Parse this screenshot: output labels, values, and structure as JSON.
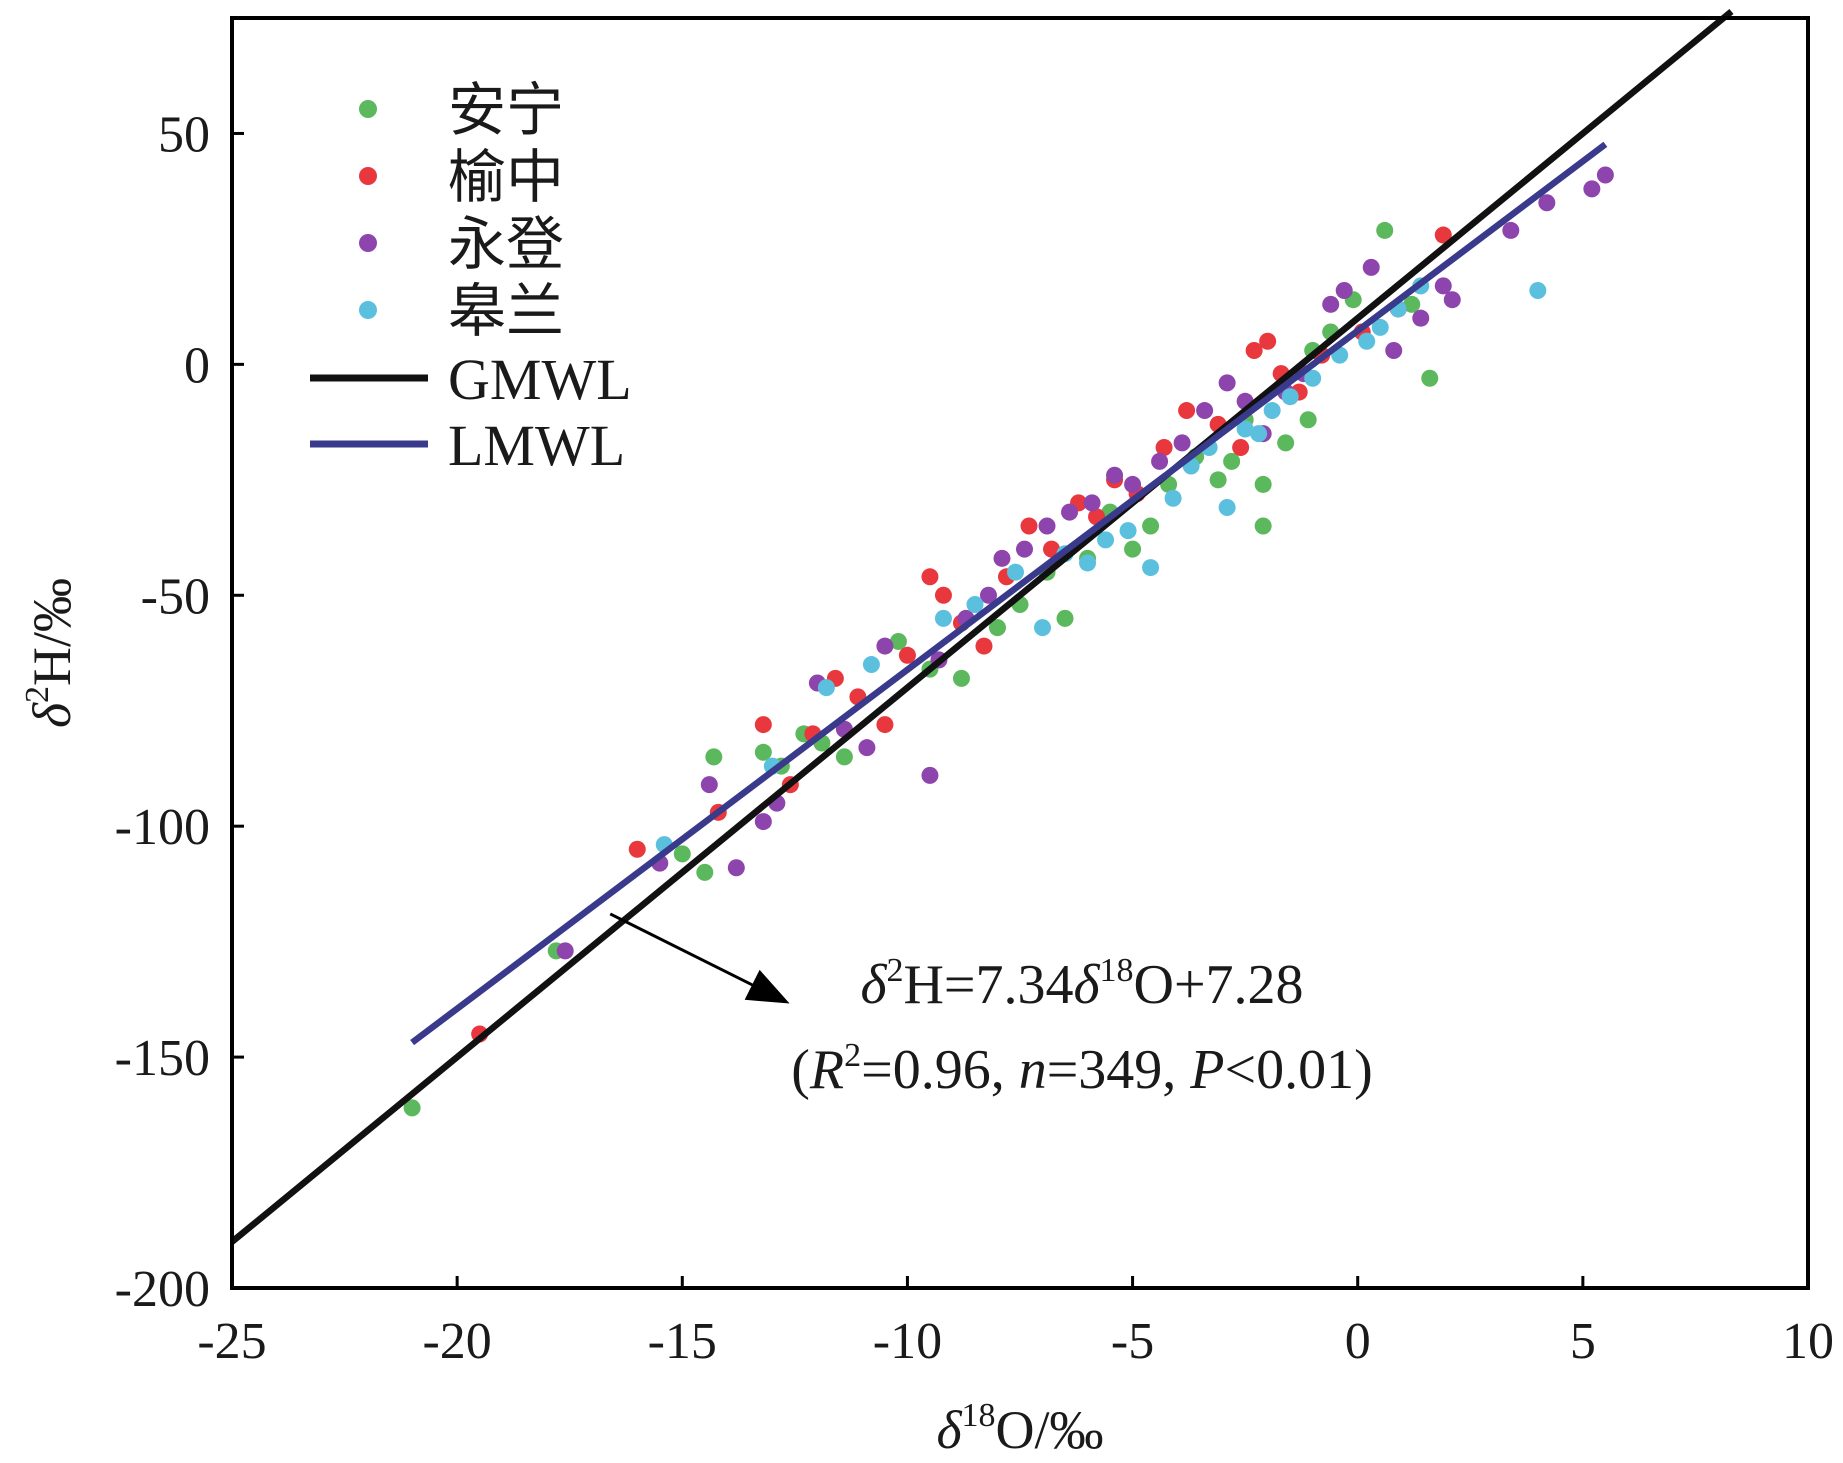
{
  "chart_data": {
    "type": "scatter",
    "x_label_prefix": "δ",
    "x_label_sup": "18",
    "x_label_suffix": "O/‰",
    "y_label_prefix": "δ",
    "y_label_sup": "2",
    "y_label_suffix": "H/‰",
    "xlim": [
      -25,
      10
    ],
    "ylim": [
      -200,
      75
    ],
    "xticks": [
      -25,
      -20,
      -15,
      -10,
      -5,
      0,
      5,
      10
    ],
    "yticks": [
      -200,
      -150,
      -100,
      -50,
      0,
      50
    ],
    "grid": false,
    "legend_position": "top-left",
    "series": [
      {
        "name": "安宁",
        "color": "#5cb85c",
        "x": [
          -21.0,
          -17.8,
          -15.0,
          -14.5,
          -14.3,
          -13.2,
          -12.8,
          -12.3,
          -11.9,
          -11.4,
          -10.2,
          -9.5,
          -8.8,
          -8.0,
          -7.5,
          -6.9,
          -6.5,
          -6.0,
          -5.5,
          -5.0,
          -4.6,
          -4.2,
          -3.6,
          -3.1,
          -2.8,
          -2.5,
          -2.1,
          -2.1,
          -1.6,
          -1.1,
          -1.0,
          -0.6,
          -0.1,
          0.6,
          1.2,
          1.6
        ],
        "y": [
          -161,
          -127,
          -106,
          -110,
          -85,
          -84,
          -87,
          -80,
          -82,
          -85,
          -60,
          -66,
          -68,
          -57,
          -52,
          -45,
          -55,
          -42,
          -32,
          -40,
          -35,
          -26,
          -20,
          -25,
          -21,
          -12,
          -35,
          -26,
          -17,
          -12,
          3,
          7,
          14,
          29,
          13,
          -3
        ]
      },
      {
        "name": "榆中",
        "color": "#e8383d",
        "x": [
          -19.5,
          -16.0,
          -14.2,
          -13.2,
          -12.6,
          -12.1,
          -11.6,
          -11.1,
          -10.5,
          -10.0,
          -9.5,
          -9.2,
          -8.8,
          -8.3,
          -7.8,
          -7.3,
          -6.8,
          -6.2,
          -5.8,
          -5.4,
          -4.9,
          -4.3,
          -3.8,
          -3.1,
          -2.6,
          -2.3,
          -2.0,
          -1.7,
          -1.3,
          -0.8,
          0.1,
          0.9,
          1.9
        ],
        "y": [
          -145,
          -105,
          -97,
          -78,
          -91,
          -80,
          -68,
          -72,
          -78,
          -63,
          -46,
          -50,
          -56,
          -61,
          -46,
          -35,
          -40,
          -30,
          -33,
          -25,
          -28,
          -18,
          -10,
          -13,
          -18,
          3,
          5,
          -2,
          -6,
          2,
          7,
          12,
          28
        ]
      },
      {
        "name": "永登",
        "color": "#8e44ad",
        "x": [
          -17.6,
          -15.5,
          -14.4,
          -13.8,
          -13.2,
          -12.9,
          -12.0,
          -11.4,
          -10.9,
          -10.5,
          -9.5,
          -9.3,
          -8.7,
          -8.2,
          -7.9,
          -7.4,
          -6.9,
          -6.4,
          -5.9,
          -5.4,
          -5.0,
          -4.4,
          -3.9,
          -3.4,
          -2.9,
          -2.5,
          -2.1,
          -1.6,
          -1.2,
          -0.6,
          -0.3,
          0.3,
          0.8,
          1.4,
          1.9,
          2.1,
          3.4,
          4.2,
          5.2,
          5.5
        ],
        "y": [
          -127,
          -108,
          -91,
          -109,
          -99,
          -95,
          -69,
          -79,
          -83,
          -61,
          -89,
          -64,
          -55,
          -50,
          -42,
          -40,
          -35,
          -32,
          -30,
          -24,
          -26,
          -21,
          -17,
          -10,
          -4,
          -8,
          -15,
          -6,
          -2,
          13,
          16,
          21,
          3,
          10,
          17,
          14,
          29,
          35,
          38,
          41
        ]
      },
      {
        "name": "皋兰",
        "color": "#5bc0de",
        "x": [
          -15.4,
          -13.0,
          -11.8,
          -10.8,
          -9.2,
          -8.5,
          -7.6,
          -7.0,
          -6.5,
          -6.0,
          -5.6,
          -5.1,
          -4.6,
          -4.1,
          -3.7,
          -3.3,
          -2.9,
          -2.5,
          -2.2,
          -1.9,
          -1.5,
          -1.0,
          -0.4,
          0.2,
          0.5,
          0.9,
          1.4,
          4.0
        ],
        "y": [
          -104,
          -87,
          -70,
          -65,
          -55,
          -52,
          -45,
          -57,
          -41,
          -43,
          -38,
          -36,
          -44,
          -29,
          -22,
          -18,
          -31,
          -14,
          -15,
          -10,
          -7,
          -3,
          2,
          5,
          8,
          12,
          17,
          16
        ]
      }
    ],
    "lines": [
      {
        "name": "GMWL",
        "color": "#111111",
        "slope": 8,
        "intercept": 10,
        "x_range": [
          -25,
          8.3
        ]
      },
      {
        "name": "LMWL",
        "color": "#3a3a8c",
        "slope": 7.34,
        "intercept": 7.28,
        "x_range": [
          -21.0,
          5.5
        ]
      }
    ],
    "annotation": {
      "eq_left_a": "δ",
      "eq_left_sup_a": "2",
      "eq_mid": "H=7.34",
      "eq_mid_b": "δ",
      "eq_sup_b": "18",
      "eq_right": "O+7.28",
      "stats_open": "(",
      "stats_r": "R",
      "stats_r_sup": "2",
      "stats_r_val": "=0.96, ",
      "stats_n": "n",
      "stats_n_val": "=349, ",
      "stats_p": "P",
      "stats_p_val": "<0.01)",
      "arrow_from": [
        -16.6,
        -119
      ],
      "arrow_to": [
        -12.7,
        -138
      ]
    }
  }
}
